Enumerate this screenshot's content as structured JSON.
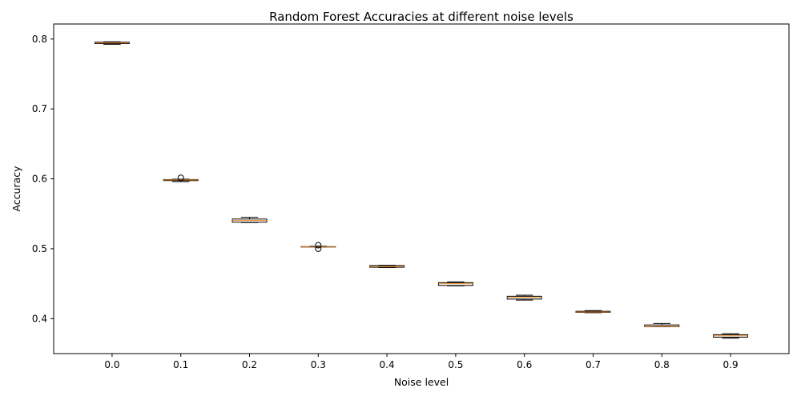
{
  "chart_data": {
    "type": "boxplot",
    "title": "Random Forest Accuracies at different noise levels",
    "xlabel": "Noise level",
    "ylabel": "Accuracy",
    "categories": [
      "0.0",
      "0.1",
      "0.2",
      "0.3",
      "0.4",
      "0.5",
      "0.6",
      "0.7",
      "0.8",
      "0.9"
    ],
    "ylim": [
      0.35,
      0.8215
    ],
    "yticks": [
      "0.4",
      "0.5",
      "0.6",
      "0.7",
      "0.8"
    ],
    "grid": false,
    "boxes": [
      {
        "min": 0.7925,
        "q1": 0.7935,
        "median": 0.7945,
        "q3": 0.7955,
        "max": 0.796,
        "outliers": []
      },
      {
        "min": 0.596,
        "q1": 0.5975,
        "median": 0.5985,
        "q3": 0.599,
        "max": 0.5995,
        "outliers": [
          0.6015
        ]
      },
      {
        "min": 0.5375,
        "q1": 0.538,
        "median": 0.5405,
        "q3": 0.5425,
        "max": 0.545,
        "outliers": []
      },
      {
        "min": 0.5025,
        "q1": 0.5025,
        "median": 0.5025,
        "q3": 0.503,
        "max": 0.5035,
        "outliers": [
          0.5,
          0.505
        ]
      },
      {
        "min": 0.473,
        "q1": 0.4735,
        "median": 0.4745,
        "q3": 0.476,
        "max": 0.4765,
        "outliers": []
      },
      {
        "min": 0.447,
        "q1": 0.4475,
        "median": 0.45,
        "q3": 0.4515,
        "max": 0.4525,
        "outliers": []
      },
      {
        "min": 0.4265,
        "q1": 0.428,
        "median": 0.4305,
        "q3": 0.432,
        "max": 0.4335,
        "outliers": []
      },
      {
        "min": 0.4085,
        "q1": 0.409,
        "median": 0.4095,
        "q3": 0.4105,
        "max": 0.4115,
        "outliers": []
      },
      {
        "min": 0.3885,
        "q1": 0.3885,
        "median": 0.389,
        "q3": 0.391,
        "max": 0.393,
        "outliers": []
      },
      {
        "min": 0.372,
        "q1": 0.3735,
        "median": 0.3755,
        "q3": 0.377,
        "max": 0.3785,
        "outliers": []
      }
    ],
    "colors": {
      "box": "#000000",
      "median": "#f28e2b"
    }
  }
}
